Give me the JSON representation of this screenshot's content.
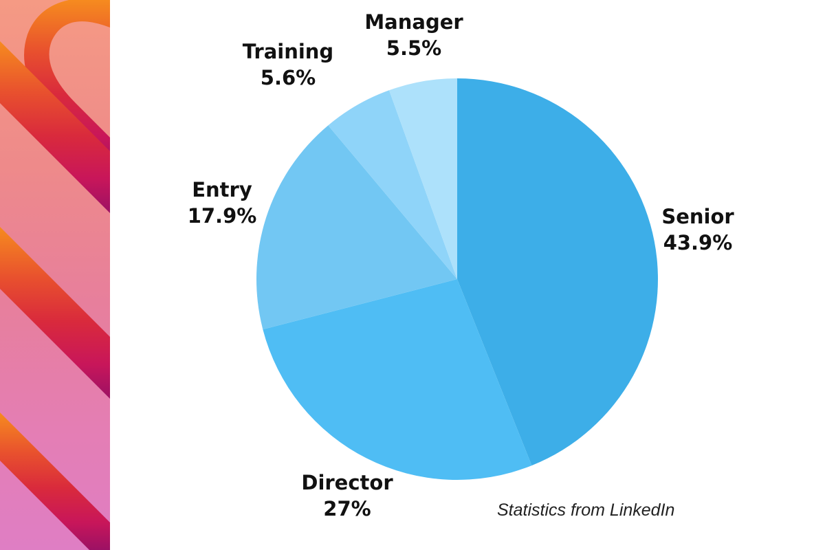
{
  "chart_data": {
    "type": "pie",
    "title": "",
    "start_angle_deg": 0,
    "direction": "clockwise",
    "slices": [
      {
        "label": "Senior",
        "value": 43.9,
        "value_text": "43.9%",
        "color": "#3daee8"
      },
      {
        "label": "Director",
        "value": 27,
        "value_text": "27%",
        "color": "#4fbdf4"
      },
      {
        "label": "Entry",
        "value": 17.9,
        "value_text": "17.9%",
        "color": "#72c7f3"
      },
      {
        "label": "Training",
        "value": 5.6,
        "value_text": "5.6%",
        "color": "#8fd4f9"
      },
      {
        "label": "Manager",
        "value": 5.5,
        "value_text": "5.5%",
        "color": "#ade1fb"
      }
    ]
  },
  "footer": {
    "source": "Statistics from LinkedIn"
  },
  "decor": {
    "accent_colors": [
      "#f68b1f",
      "#e8502e",
      "#d92a3c",
      "#c2185b",
      "#9c1164"
    ]
  }
}
